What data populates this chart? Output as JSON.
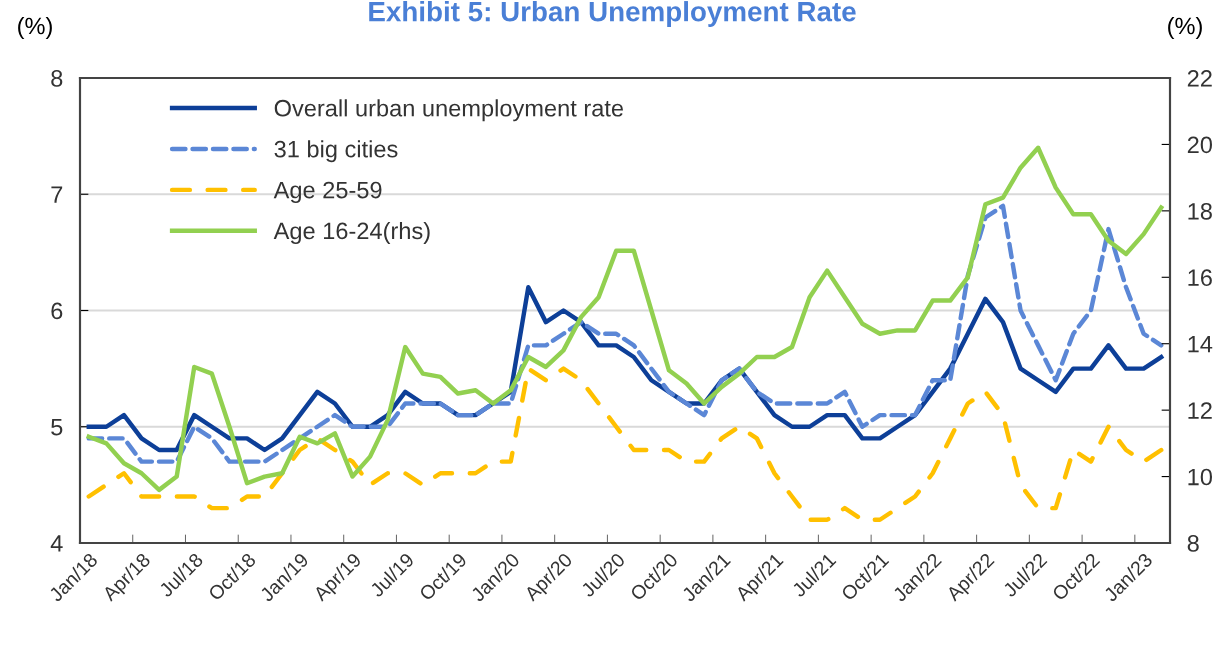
{
  "chart_data": {
    "type": "line",
    "title": "Exhibit 5: Urban Unemployment Rate",
    "ylabel": "(%)",
    "y2label": "(%)",
    "categories": [
      "Jan/18",
      null,
      null,
      "Apr/18",
      null,
      null,
      "Jul/18",
      null,
      null,
      "Oct/18",
      null,
      null,
      "Jan/19",
      null,
      null,
      "Apr/19",
      null,
      null,
      "Jul/19",
      null,
      null,
      "Oct/19",
      null,
      null,
      "Jan/20",
      null,
      null,
      "Apr/20",
      null,
      null,
      "Jul/20",
      null,
      null,
      "Oct/20",
      null,
      null,
      "Jan/21",
      null,
      null,
      "Apr/21",
      null,
      null,
      "Jul/21",
      null,
      null,
      "Oct/21",
      null,
      null,
      "Jan/22",
      null,
      null,
      "Apr/22",
      null,
      null,
      "Jul/22",
      null,
      null,
      "Oct/22",
      null,
      null,
      "Jan/23",
      null
    ],
    "series": [
      {
        "name": "Overall urban unemployment rate",
        "color": "#0d3f98",
        "line_style": "solid",
        "values": [
          5.0,
          5.0,
          5.1,
          4.9,
          4.8,
          4.8,
          5.1,
          5.0,
          4.9,
          4.9,
          4.8,
          4.9,
          5.1,
          5.3,
          5.2,
          5.0,
          5.0,
          5.1,
          5.3,
          5.2,
          5.2,
          5.1,
          5.1,
          5.2,
          5.3,
          6.2,
          5.9,
          6.0,
          5.9,
          5.7,
          5.7,
          5.6,
          5.4,
          5.3,
          5.2,
          5.2,
          5.4,
          5.5,
          5.3,
          5.1,
          5.0,
          5.0,
          5.1,
          5.1,
          4.9,
          4.9,
          5.0,
          5.1,
          5.3,
          5.5,
          5.8,
          6.1,
          5.9,
          5.5,
          5.4,
          5.3,
          5.5,
          5.5,
          5.7,
          5.5,
          5.5,
          5.6
        ]
      },
      {
        "name": "31 big cities",
        "color": "#5b87d6",
        "line_style": "dashed",
        "values": [
          4.9,
          4.9,
          4.9,
          4.7,
          4.7,
          4.7,
          5.0,
          4.9,
          4.7,
          4.7,
          4.7,
          4.8,
          4.9,
          5.0,
          5.1,
          5.0,
          5.0,
          5.0,
          5.2,
          5.2,
          5.2,
          5.1,
          5.1,
          5.2,
          5.2,
          5.7,
          5.7,
          5.8,
          5.9,
          5.8,
          5.8,
          5.7,
          5.5,
          5.3,
          5.2,
          5.1,
          5.4,
          5.5,
          5.3,
          5.2,
          5.2,
          5.2,
          5.2,
          5.3,
          5.0,
          5.1,
          5.1,
          5.1,
          5.4,
          5.4,
          6.3,
          6.8,
          6.9,
          6.0,
          5.7,
          5.4,
          5.8,
          6.0,
          6.7,
          6.2,
          5.8,
          5.7
        ]
      },
      {
        "name": "Age 25-59",
        "color": "#ffc000",
        "line_style": "dashed",
        "values": [
          4.4,
          4.5,
          4.6,
          4.4,
          4.4,
          4.4,
          4.4,
          4.3,
          4.3,
          4.4,
          4.4,
          4.6,
          4.8,
          4.9,
          4.8,
          4.7,
          4.5,
          4.6,
          4.6,
          4.5,
          4.6,
          4.6,
          4.6,
          4.7,
          4.7,
          5.5,
          5.4,
          5.5,
          5.4,
          5.2,
          5.0,
          4.8,
          4.8,
          4.8,
          4.7,
          4.7,
          4.9,
          5.0,
          4.9,
          4.6,
          4.4,
          4.2,
          4.2,
          4.3,
          4.2,
          4.2,
          4.3,
          4.4,
          4.6,
          4.9,
          5.2,
          5.3,
          5.1,
          4.5,
          4.3,
          4.3,
          4.8,
          4.7,
          5.0,
          4.8,
          4.7,
          4.8
        ]
      },
      {
        "name": "Age 16-24(rhs)",
        "color": "#92d050",
        "line_style": "solid",
        "axis": "y2",
        "values": [
          11.2,
          11.0,
          10.4,
          10.1,
          9.6,
          10.0,
          13.3,
          13.1,
          11.5,
          9.8,
          10.0,
          10.1,
          11.2,
          11.0,
          11.3,
          10.0,
          10.6,
          11.7,
          13.9,
          13.1,
          13.0,
          12.5,
          12.6,
          12.2,
          12.6,
          13.6,
          13.3,
          13.8,
          14.8,
          15.4,
          16.8,
          16.8,
          15.0,
          13.2,
          12.8,
          12.2,
          12.7,
          13.1,
          13.6,
          13.6,
          13.9,
          15.4,
          16.2,
          15.4,
          14.6,
          14.3,
          14.4,
          14.4,
          15.3,
          15.3,
          16.0,
          18.2,
          18.4,
          19.3,
          19.9,
          18.7,
          17.9,
          17.9,
          17.1,
          16.7,
          17.3,
          18.1
        ]
      }
    ],
    "ylim": [
      4,
      8
    ],
    "yticks": [
      4,
      5,
      6,
      7,
      8
    ],
    "y2lim": [
      8,
      22
    ],
    "y2ticks": [
      8,
      10,
      12,
      14,
      16,
      18,
      20,
      22
    ],
    "grid": "y",
    "legend": "top left",
    "marker": "none"
  }
}
